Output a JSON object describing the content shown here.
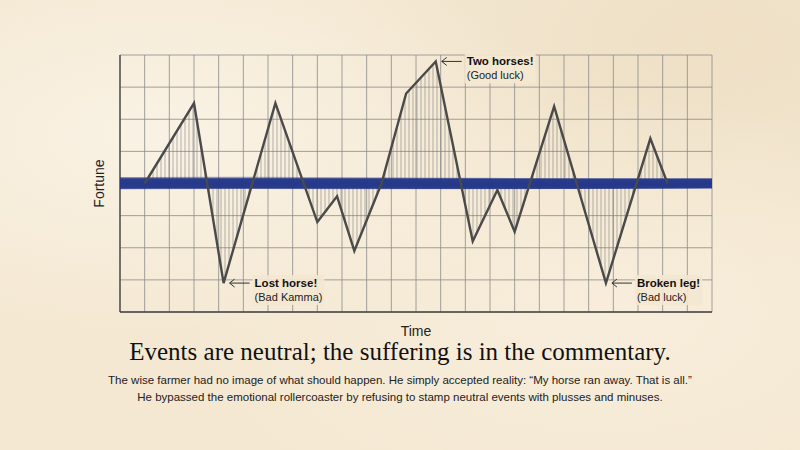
{
  "chart_data": {
    "type": "line",
    "title": "Events are neutral; the suffering is in the commentary.",
    "subtitle": [
      "The wise farmer had no image of what should happen. He simply accepted reality: “My horse ran away. That is all.”",
      "He bypassed the emotional rollercoaster by refusing to stamp neutral events with plusses and minuses."
    ],
    "x_label": "Time",
    "y_label": "Fortune",
    "x": [
      1,
      3,
      4.2,
      6.3,
      8,
      8.8,
      9.5,
      10.6,
      11.6,
      12.8,
      14.3,
      15.3,
      16,
      17.6,
      19.7,
      21.5,
      22.2
    ],
    "values": [
      0,
      2.5,
      -3.1,
      2.5,
      -1.2,
      -0.4,
      -2.1,
      0,
      2.8,
      3.8,
      -1.8,
      -0.2,
      -1.5,
      2.4,
      -3.1,
      1.4,
      0
    ],
    "color": "#4a4a4a",
    "xlim": [
      0,
      24
    ],
    "ylim": [
      -4,
      4
    ],
    "xticks": [
      0,
      1,
      2,
      3,
      4,
      5,
      6,
      7,
      8,
      9,
      10,
      11,
      12,
      13,
      14,
      15,
      16,
      17,
      18,
      19,
      20,
      21,
      22,
      23,
      24
    ],
    "yticks": [
      -4,
      -3,
      -2,
      -1,
      0,
      1,
      2,
      3,
      4
    ],
    "grid": true,
    "tick_labels": false,
    "annotations": [
      {
        "text": "Two horses!",
        "note": "(Good luck)",
        "x": 12.8,
        "y": 3.8
      },
      {
        "text": "Lost horse!",
        "note": "(Bad Kamma)",
        "x": 4.2,
        "y": -3.1
      },
      {
        "text": "Broken leg!",
        "note": "(Bad luck)",
        "x": 19.7,
        "y": -3.1
      }
    ]
  }
}
